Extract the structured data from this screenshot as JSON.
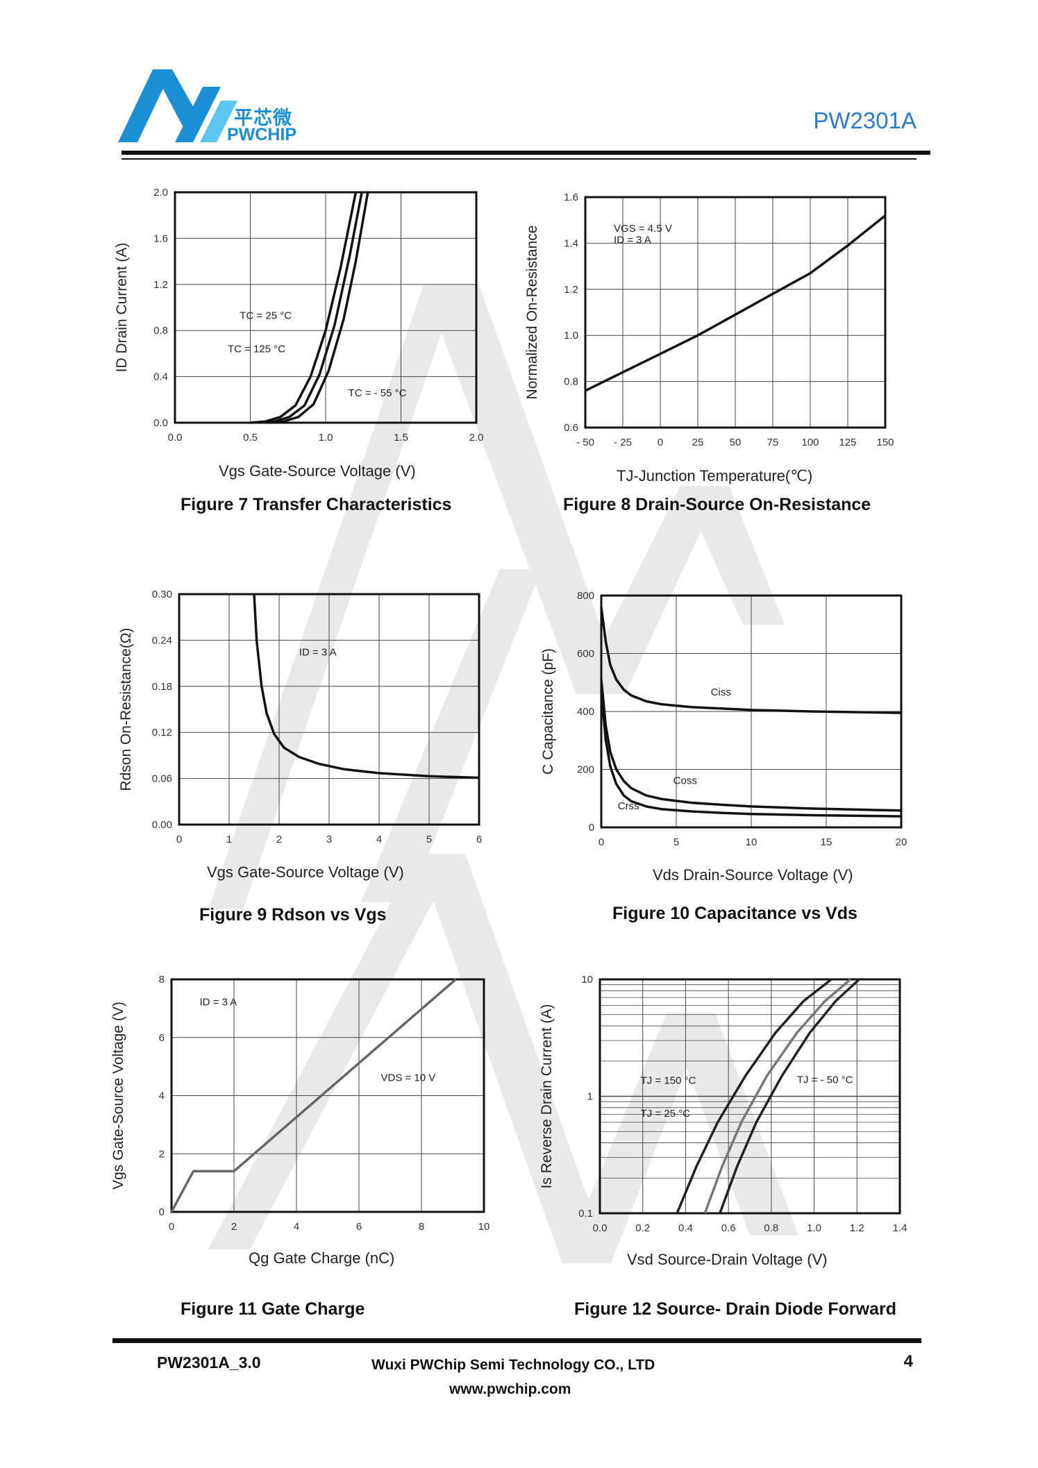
{
  "header": {
    "logo_cn": "平芯微",
    "logo_en": "PWCHIP",
    "part_number": "PW2301A"
  },
  "footer": {
    "doc_version": "PW2301A_3.0",
    "company": "Wuxi PWChip Semi Technology CO., LTD",
    "website": "www.pwchip.com",
    "page": "4"
  },
  "colors": {
    "brand": "#1a8fd6",
    "part_number": "#2a7ad0",
    "watermark": "#e6e6e6"
  },
  "chart_data": [
    {
      "id": "fig7",
      "type": "line",
      "caption": "Figure 7 Transfer Characteristics",
      "xlabel": "Vgs Gate-Source Voltage (V)",
      "ylabel": "ID Drain Current (A)",
      "xlim": [
        0,
        2.0
      ],
      "ylim": [
        0,
        2.0
      ],
      "xticks": [
        "0.0",
        "0.5",
        "1.0",
        "1.5",
        "2.0"
      ],
      "yticks": [
        "0.0",
        "0.4",
        "0.8",
        "1.2",
        "1.6",
        "2.0"
      ],
      "grid": true,
      "series": [
        {
          "name": "TC = 125 °C",
          "x": [
            0.5,
            0.6,
            0.7,
            0.8,
            0.9,
            1.0,
            1.1,
            1.2
          ],
          "y": [
            0.0,
            0.01,
            0.05,
            0.15,
            0.4,
            0.8,
            1.35,
            2.0
          ]
        },
        {
          "name": "TC = 25 °C",
          "x": [
            0.56,
            0.66,
            0.76,
            0.86,
            0.96,
            1.06,
            1.16,
            1.24
          ],
          "y": [
            0.0,
            0.01,
            0.05,
            0.15,
            0.42,
            0.85,
            1.45,
            2.0
          ]
        },
        {
          "name": "TC = - 55 °C",
          "x": [
            0.62,
            0.72,
            0.82,
            0.92,
            1.02,
            1.12,
            1.2,
            1.28
          ],
          "y": [
            0.0,
            0.01,
            0.05,
            0.16,
            0.45,
            0.9,
            1.4,
            2.0
          ]
        }
      ],
      "annotations": [
        {
          "text": "TC = 25 °C",
          "x": 0.43,
          "y": 0.9
        },
        {
          "text": "TC = 125 °C",
          "x": 0.35,
          "y": 0.61
        },
        {
          "text": "TC = - 55 °C",
          "x": 1.15,
          "y": 0.23
        }
      ]
    },
    {
      "id": "fig8",
      "type": "line",
      "caption": "Figure 8 Drain-Source On-Resistance",
      "xlabel": "TJ-Junction Temperature(℃)",
      "ylabel": "Normalized On-Resistance",
      "xlim": [
        -50,
        150
      ],
      "ylim": [
        0.6,
        1.6
      ],
      "xticks": [
        "- 50",
        "- 25",
        "0",
        "25",
        "50",
        "75",
        "100",
        "125",
        "150"
      ],
      "yticks": [
        "0.6",
        "0.8",
        "1.0",
        "1.2",
        "1.4",
        "1.6"
      ],
      "grid": true,
      "series": [
        {
          "name": "",
          "x": [
            -50,
            -25,
            0,
            25,
            50,
            75,
            100,
            125,
            150
          ],
          "y": [
            0.76,
            0.84,
            0.92,
            1.0,
            1.09,
            1.18,
            1.27,
            1.39,
            1.52
          ]
        }
      ],
      "annotations": [
        {
          "text": "VGS = 4.5 V",
          "x": -31,
          "y": 1.45
        },
        {
          "text": "ID = 3 A",
          "x": -31,
          "y": 1.4
        }
      ]
    },
    {
      "id": "fig9",
      "type": "line",
      "caption": "Figure 9 Rdson vs Vgs",
      "xlabel": "Vgs Gate-Source Voltage (V)",
      "ylabel": "Rdson On-Resistance(Ω)",
      "xlim": [
        0,
        6
      ],
      "ylim": [
        0,
        0.3
      ],
      "xticks": [
        "0",
        "1",
        "2",
        "3",
        "4",
        "5",
        "6"
      ],
      "yticks": [
        "0.00",
        "0.06",
        "0.12",
        "0.18",
        "0.24",
        "0.30"
      ],
      "grid": true,
      "series": [
        {
          "name": "",
          "x": [
            1.5,
            1.55,
            1.65,
            1.75,
            1.9,
            2.1,
            2.4,
            2.8,
            3.3,
            4.0,
            5.0,
            6.0
          ],
          "y": [
            0.3,
            0.24,
            0.18,
            0.145,
            0.118,
            0.1,
            0.088,
            0.079,
            0.072,
            0.067,
            0.063,
            0.061
          ]
        }
      ],
      "annotations": [
        {
          "text": "ID = 3 A",
          "x": 2.4,
          "y": 0.22
        }
      ]
    },
    {
      "id": "fig10",
      "type": "line",
      "caption": "Figure 10 Capacitance vs Vds",
      "xlabel": "Vds Drain-Source Voltage (V)",
      "ylabel": "C Capacitance (pF)",
      "xlim": [
        0,
        20
      ],
      "ylim": [
        0,
        800
      ],
      "xticks": [
        "0",
        "5",
        "10",
        "15",
        "20"
      ],
      "yticks": [
        "0",
        "200",
        "400",
        "600",
        "800"
      ],
      "grid": true,
      "series": [
        {
          "name": "Ciss",
          "x": [
            0,
            0.3,
            0.6,
            1,
            1.5,
            2,
            3,
            4,
            6,
            8,
            10,
            14,
            20
          ],
          "y": [
            760,
            640,
            560,
            510,
            475,
            455,
            435,
            425,
            415,
            410,
            405,
            400,
            395
          ]
        },
        {
          "name": "Coss",
          "x": [
            0,
            0.3,
            0.6,
            1,
            1.5,
            2,
            3,
            4,
            6,
            8,
            10,
            14,
            20
          ],
          "y": [
            510,
            350,
            260,
            200,
            160,
            135,
            110,
            98,
            85,
            78,
            72,
            65,
            58
          ]
        },
        {
          "name": "Crss",
          "x": [
            0,
            0.3,
            0.6,
            1,
            1.5,
            2,
            3,
            4,
            6,
            8,
            10,
            14,
            20
          ],
          "y": [
            470,
            300,
            210,
            150,
            110,
            90,
            72,
            63,
            55,
            50,
            46,
            42,
            38
          ]
        }
      ],
      "annotations": [
        {
          "text": "Ciss",
          "x": 7.3,
          "y": 455
        },
        {
          "text": "Coss",
          "x": 4.8,
          "y": 150
        },
        {
          "text": "Crss",
          "x": 1.1,
          "y": 62
        }
      ]
    },
    {
      "id": "fig11",
      "type": "line",
      "caption": "Figure 11 Gate Charge",
      "xlabel": "Qg Gate Charge (nC)",
      "ylabel": "Vgs Gate-Source Voltage (V)",
      "xlim": [
        0,
        10
      ],
      "ylim": [
        0,
        8
      ],
      "xticks": [
        "0",
        "2",
        "4",
        "6",
        "8",
        "10"
      ],
      "yticks": [
        "0",
        "2",
        "4",
        "6",
        "8"
      ],
      "grid": true,
      "series": [
        {
          "name": "",
          "x": [
            0,
            0.7,
            2.0,
            9.1
          ],
          "y": [
            0,
            1.4,
            1.4,
            8.0
          ]
        }
      ],
      "annotations": [
        {
          "text": "ID = 3 A",
          "x": 0.9,
          "y": 7.1
        },
        {
          "text": "VDS = 10 V",
          "x": 6.7,
          "y": 4.5
        }
      ]
    },
    {
      "id": "fig12",
      "type": "line",
      "caption": "Figure 12 Source- Drain Diode Forward",
      "xlabel": "Vsd Source-Drain Voltage (V)",
      "ylabel": "Is Reverse Drain Current (A)",
      "xlim": [
        0,
        1.4
      ],
      "ylim": [
        0.1,
        10
      ],
      "yscale": "log",
      "xticks": [
        "0.0",
        "0.2",
        "0.4",
        "0.6",
        "0.8",
        "1.0",
        "1.2",
        "1.4"
      ],
      "yticks": [
        "0.1",
        "1",
        "10"
      ],
      "grid": true,
      "series": [
        {
          "name": "TJ = 150 °C",
          "x": [
            0.36,
            0.45,
            0.55,
            0.68,
            0.82,
            0.95,
            1.08
          ],
          "y": [
            0.1,
            0.25,
            0.6,
            1.5,
            3.5,
            6.5,
            10
          ]
        },
        {
          "name": "TJ = 25 °C",
          "x": [
            0.49,
            0.57,
            0.66,
            0.78,
            0.92,
            1.05,
            1.17
          ],
          "y": [
            0.1,
            0.25,
            0.6,
            1.5,
            3.5,
            6.5,
            10
          ]
        },
        {
          "name": "TJ = - 50 °C",
          "x": [
            0.56,
            0.64,
            0.73,
            0.85,
            0.98,
            1.1,
            1.21
          ],
          "y": [
            0.1,
            0.25,
            0.6,
            1.5,
            3.5,
            6.5,
            10
          ]
        }
      ],
      "annotations": [
        {
          "text": "TJ = 150 °C",
          "x": 0.19,
          "y": 1.28
        },
        {
          "text": "TJ = 25 °C",
          "x": 0.19,
          "y": 0.67
        },
        {
          "text": "TJ = - 50 °C",
          "x": 0.92,
          "y": 1.3
        }
      ]
    }
  ]
}
